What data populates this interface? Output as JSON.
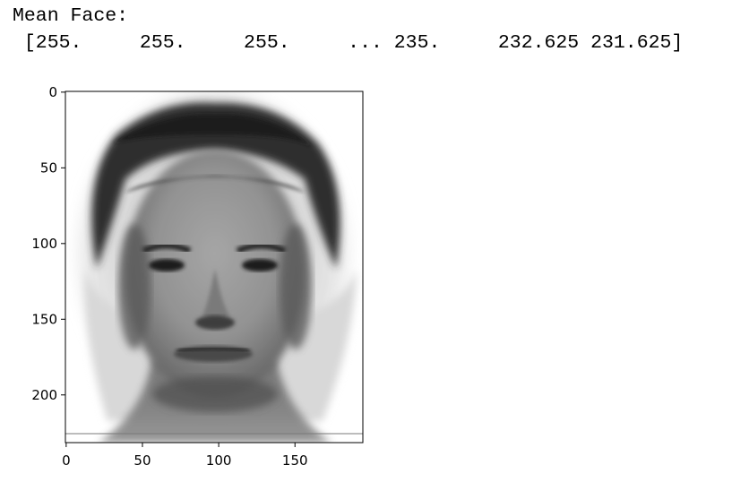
{
  "output": {
    "line1": "Mean Face:",
    "line2": " [255.     255.     255.     ... 235.     232.625 231.625]"
  },
  "chart_data": {
    "type": "image",
    "colormap": "gray",
    "image_width": 195,
    "image_height": 232,
    "xlim": [
      -0.5,
      194.5
    ],
    "ylim": [
      231.5,
      -0.5
    ],
    "xticks": [
      0,
      50,
      100,
      150
    ],
    "yticks": [
      0,
      50,
      100,
      150,
      200
    ],
    "xtick_labels": [
      "0",
      "50",
      "100",
      "150"
    ],
    "ytick_labels": [
      "0",
      "50",
      "100",
      "150",
      "200"
    ]
  }
}
